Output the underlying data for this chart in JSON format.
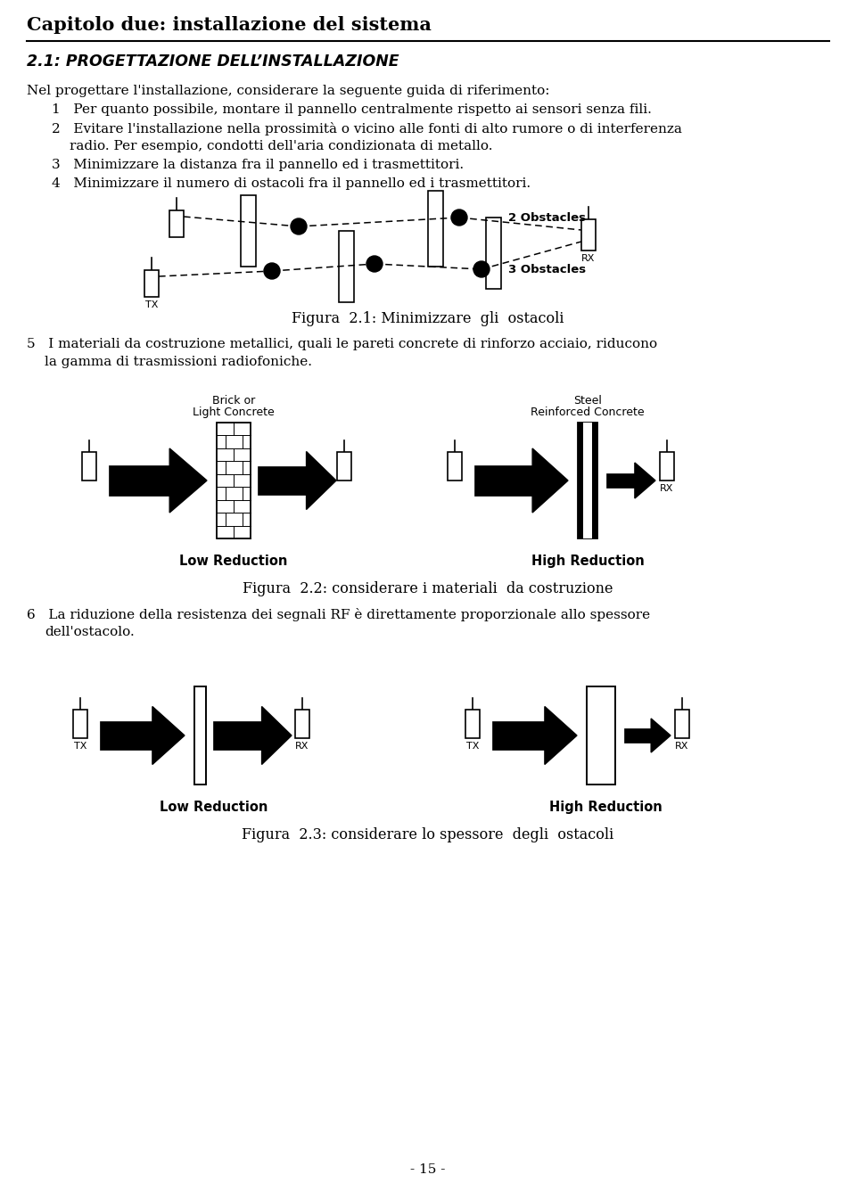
{
  "title": "Capitolo due: installazione del sistema",
  "subtitle": "2.1: PROGETTAZIONE DELL’INSTALLAZIONE",
  "fig1_caption": "Figura  2.1: Minimizzare  gli  ostacoli",
  "fig2_caption": "Figura  2.2: considerare i materiali  da costruzione",
  "fig3_caption": "Figura  2.3: considerare lo spessore  degli  ostacoli",
  "page_num": "- 15 -",
  "bg_color": "#ffffff",
  "text_color": "#000000"
}
